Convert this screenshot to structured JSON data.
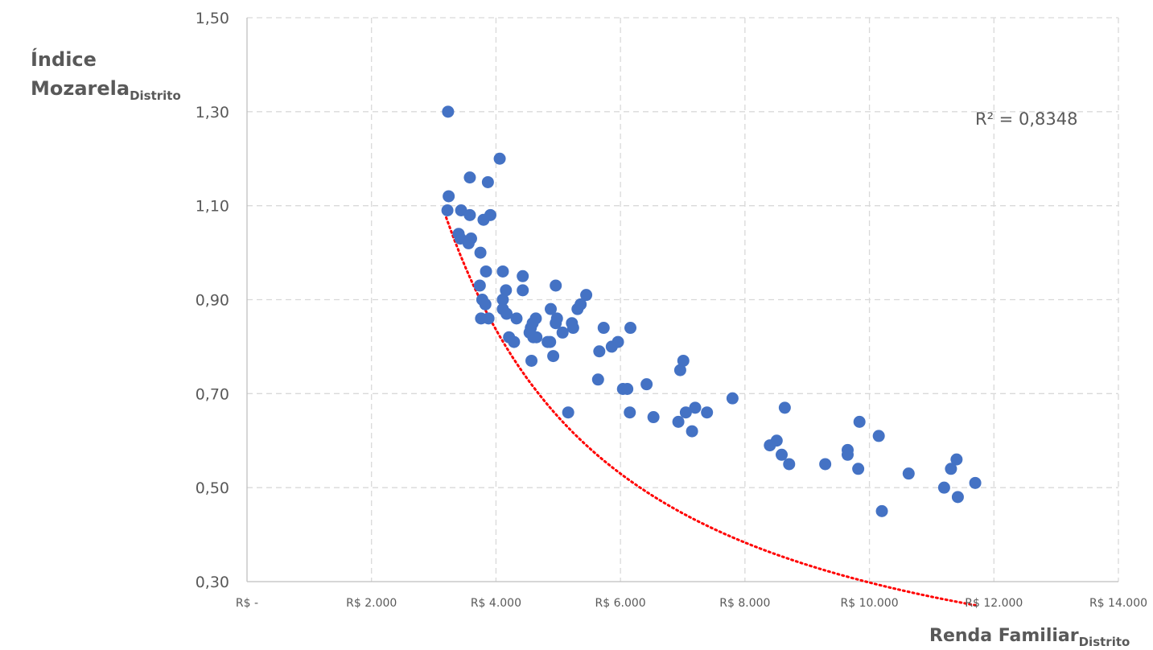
{
  "chart_data": {
    "type": "scatter",
    "y_title_line1": "Índice",
    "y_title_main": "Mozarela",
    "y_title_sub": "Distrito",
    "x_title_main": "Renda Familiar",
    "x_title_sub": "Distrito",
    "r_squared_label": "R² = 0,8348",
    "xlim": [
      0,
      14000
    ],
    "ylim": [
      0.3,
      1.5
    ],
    "x_ticks": [
      {
        "value": 0,
        "label": "R$ -"
      },
      {
        "value": 2000,
        "label": "R$ 2.000"
      },
      {
        "value": 4000,
        "label": "R$ 4.000"
      },
      {
        "value": 6000,
        "label": "R$ 6.000"
      },
      {
        "value": 8000,
        "label": "R$ 8.000"
      },
      {
        "value": 10000,
        "label": "R$ 10.000"
      },
      {
        "value": 12000,
        "label": "R$ 12.000"
      },
      {
        "value": 14000,
        "label": "R$ 14.000"
      }
    ],
    "y_ticks": [
      {
        "value": 0.3,
        "label": "0,30"
      },
      {
        "value": 0.5,
        "label": "0,50"
      },
      {
        "value": 0.7,
        "label": "0,70"
      },
      {
        "value": 0.9,
        "label": "0,90"
      },
      {
        "value": 1.1,
        "label": "1,10"
      },
      {
        "value": 1.3,
        "label": "1,30"
      },
      {
        "value": 1.5,
        "label": "1,50"
      }
    ],
    "grid": true,
    "grid_style": "dashed",
    "trendline": {
      "type": "power",
      "a": 9478.3,
      "b": -1.1256,
      "x_start": 3200,
      "x_end": 11750,
      "color": "#ff0000"
    },
    "colors": {
      "point": "#4472c4",
      "grid": "#d9d9d9",
      "text": "#595959",
      "axis": "#bfbfbf"
    },
    "points": [
      [
        3230,
        1.3
      ],
      [
        4060,
        1.2
      ],
      [
        3580,
        1.16
      ],
      [
        3870,
        1.15
      ],
      [
        3240,
        1.12
      ],
      [
        3220,
        1.09
      ],
      [
        3440,
        1.09
      ],
      [
        3580,
        1.08
      ],
      [
        3910,
        1.08
      ],
      [
        3800,
        1.07
      ],
      [
        3400,
        1.04
      ],
      [
        3600,
        1.03
      ],
      [
        3430,
        1.03
      ],
      [
        3560,
        1.02
      ],
      [
        3750,
        1.0
      ],
      [
        4110,
        0.96
      ],
      [
        3840,
        0.96
      ],
      [
        4430,
        0.95
      ],
      [
        3740,
        0.93
      ],
      [
        4960,
        0.93
      ],
      [
        4160,
        0.92
      ],
      [
        4430,
        0.92
      ],
      [
        5450,
        0.91
      ],
      [
        4110,
        0.9
      ],
      [
        3780,
        0.9
      ],
      [
        3830,
        0.89
      ],
      [
        5360,
        0.89
      ],
      [
        5310,
        0.88
      ],
      [
        4880,
        0.88
      ],
      [
        4110,
        0.88
      ],
      [
        4170,
        0.87
      ],
      [
        4330,
        0.86
      ],
      [
        3760,
        0.86
      ],
      [
        4640,
        0.86
      ],
      [
        4980,
        0.86
      ],
      [
        3880,
        0.86
      ],
      [
        4960,
        0.85
      ],
      [
        4590,
        0.85
      ],
      [
        5220,
        0.85
      ],
      [
        5240,
        0.84
      ],
      [
        5730,
        0.84
      ],
      [
        6160,
        0.84
      ],
      [
        4560,
        0.84
      ],
      [
        4540,
        0.83
      ],
      [
        5070,
        0.83
      ],
      [
        4600,
        0.82
      ],
      [
        4210,
        0.82
      ],
      [
        4650,
        0.82
      ],
      [
        4870,
        0.81
      ],
      [
        5960,
        0.81
      ],
      [
        4830,
        0.81
      ],
      [
        4290,
        0.81
      ],
      [
        5860,
        0.8
      ],
      [
        5660,
        0.79
      ],
      [
        4920,
        0.78
      ],
      [
        7010,
        0.77
      ],
      [
        4570,
        0.77
      ],
      [
        6960,
        0.75
      ],
      [
        5640,
        0.73
      ],
      [
        6420,
        0.72
      ],
      [
        6110,
        0.71
      ],
      [
        6040,
        0.71
      ],
      [
        7800,
        0.69
      ],
      [
        8640,
        0.67
      ],
      [
        7200,
        0.67
      ],
      [
        6150,
        0.66
      ],
      [
        5160,
        0.66
      ],
      [
        7050,
        0.66
      ],
      [
        7390,
        0.66
      ],
      [
        6530,
        0.65
      ],
      [
        9840,
        0.64
      ],
      [
        6930,
        0.64
      ],
      [
        7150,
        0.62
      ],
      [
        10150,
        0.61
      ],
      [
        8510,
        0.6
      ],
      [
        8400,
        0.59
      ],
      [
        9650,
        0.58
      ],
      [
        9650,
        0.57
      ],
      [
        8590,
        0.57
      ],
      [
        11400,
        0.56
      ],
      [
        8710,
        0.55
      ],
      [
        9290,
        0.55
      ],
      [
        9820,
        0.54
      ],
      [
        11310,
        0.54
      ],
      [
        10630,
        0.53
      ],
      [
        11700,
        0.51
      ],
      [
        11200,
        0.5
      ],
      [
        11420,
        0.48
      ],
      [
        10200,
        0.45
      ]
    ]
  }
}
